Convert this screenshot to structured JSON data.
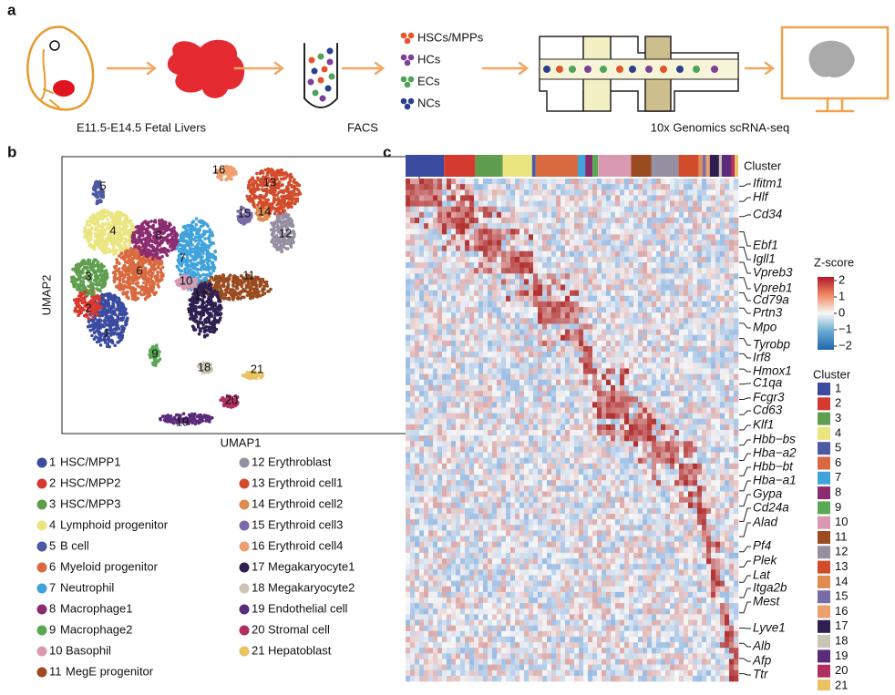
{
  "panel_labels": [
    "a",
    "b",
    "c"
  ],
  "panel_a": {
    "steps": [
      "E11.5-E14.5 Fetal Livers",
      "FACS",
      "10x Genomics scRNA-seq"
    ],
    "cell_types": [
      {
        "name": "HSCs/MPPs",
        "color": "#e2552e"
      },
      {
        "name": "HCs",
        "color": "#7d3f98"
      },
      {
        "name": "ECs",
        "color": "#4fa35a"
      },
      {
        "name": "NCs",
        "color": "#2b3f8f"
      }
    ]
  },
  "panel_b": {
    "x_label": "UMAP1",
    "y_label": "UMAP2",
    "legend": [
      {
        "num": "1",
        "name": "HSC/MPP1",
        "color": "#3b4ba0"
      },
      {
        "num": "2",
        "name": "HSC/MPP2",
        "color": "#d63a2f"
      },
      {
        "num": "3",
        "name": "HSC/MPP3",
        "color": "#5f9e4e"
      },
      {
        "num": "4",
        "name": "Lymphoid progenitor",
        "color": "#ebe57f"
      },
      {
        "num": "5",
        "name": "B cell",
        "color": "#4d5aa2"
      },
      {
        "num": "6",
        "name": "Myeloid progenitor",
        "color": "#d9693f"
      },
      {
        "num": "7",
        "name": "Neutrophil",
        "color": "#41a3dc"
      },
      {
        "num": "8",
        "name": "Macrophage1",
        "color": "#8b2c70"
      },
      {
        "num": "9",
        "name": "Macrophage2",
        "color": "#5aa755"
      },
      {
        "num": "10",
        "name": "Basophil",
        "color": "#d99ab1"
      },
      {
        "num": "11",
        "name": "MegE progenitor",
        "color": "#9a4b1f"
      },
      {
        "num": "12",
        "name": "Erythroblast",
        "color": "#958fa2"
      },
      {
        "num": "13",
        "name": "Erythroid cell1",
        "color": "#d24c2b"
      },
      {
        "num": "14",
        "name": "Erythroid cell2",
        "color": "#e08b50"
      },
      {
        "num": "15",
        "name": "Erythroid cell3",
        "color": "#7b6ba9"
      },
      {
        "num": "16",
        "name": "Erythroid cell4",
        "color": "#eca06e"
      },
      {
        "num": "17",
        "name": "Megakaryocyte1",
        "color": "#2f2051"
      },
      {
        "num": "18",
        "name": "Megakaryocyte2",
        "color": "#cbc5b6"
      },
      {
        "num": "19",
        "name": "Endothelial cell",
        "color": "#5b2b7b"
      },
      {
        "num": "20",
        "name": "Stromal cell",
        "color": "#b02e60"
      },
      {
        "num": "21",
        "name": "Hepatoblast",
        "color": "#e9c262"
      }
    ]
  },
  "panel_c": {
    "cluster_bar_label": "Cluster",
    "genes": [
      "Ifitm1",
      "Hlf",
      "Cd34",
      "Ebf1",
      "Igll1",
      "Vpreb3",
      "Vpreb1",
      "Cd79a",
      "Prtn3",
      "Mpo",
      "Tyrobp",
      "Irf8",
      "Hmox1",
      "C1qa",
      "Fcgr3",
      "Cd63",
      "Klf1",
      "Hbb−bs",
      "Hba−a2",
      "Hbb−bt",
      "Hba−a1",
      "Gypa",
      "Cd24a",
      "Alad",
      "Pf4",
      "Plek",
      "Lat",
      "Itga2b",
      "Mest",
      "Lyve1",
      "Alb",
      "Afp",
      "Ttr"
    ],
    "colorbar_title": "Z-score",
    "colorbar_ticks": [
      "2",
      "1",
      "0",
      "−1",
      "−2"
    ],
    "cluster_legend_title": "Cluster"
  }
}
